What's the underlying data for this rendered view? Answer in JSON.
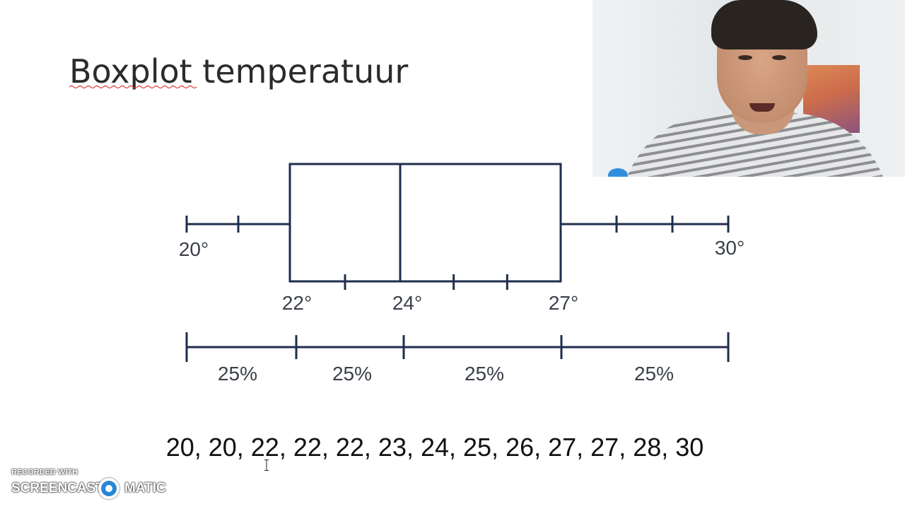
{
  "slide": {
    "title": "Boxplot temperatuur",
    "data_line": "20, 20, 22, 22, 22, 23, 24, 25, 26, 27, 27, 28, 30"
  },
  "chart_data": {
    "type": "boxplot",
    "title": "Boxplot temperatuur",
    "min": 20,
    "q1": 22,
    "median": 24,
    "q3": 27,
    "max": 30,
    "x_range": [
      20,
      30
    ],
    "unit": "°",
    "labels": [
      {
        "value": 20,
        "text": "20°"
      },
      {
        "value": 22,
        "text": "22°"
      },
      {
        "value": 24,
        "text": "24°"
      },
      {
        "value": 27,
        "text": "27°"
      },
      {
        "value": 30,
        "text": "30°"
      }
    ],
    "whisker_ticks": [
      21,
      28,
      29
    ],
    "box_ticks": [
      23,
      25,
      26
    ],
    "quartile_segments": [
      {
        "from": 20,
        "to": 22,
        "label": "25%"
      },
      {
        "from": 22,
        "to": 24,
        "label": "25%"
      },
      {
        "from": 24,
        "to": 27,
        "label": "25%"
      },
      {
        "from": 27,
        "to": 30,
        "label": "25%"
      }
    ],
    "data": [
      20,
      20,
      22,
      22,
      22,
      23,
      24,
      25,
      26,
      27,
      27,
      28,
      30
    ]
  },
  "watermark": {
    "line1": "RECORDED WITH",
    "line2a": "SCREENCAST",
    "line2b": "MATIC"
  },
  "colors": {
    "plot_stroke": "#1f2d4d",
    "plot_text": "#3a3f4a",
    "title_text": "#2b2b2b",
    "logo_blue": "#2a86d6"
  },
  "icons": {
    "logo": "screencast-o-matic-logo-icon",
    "cursor": "text-cursor-icon"
  }
}
